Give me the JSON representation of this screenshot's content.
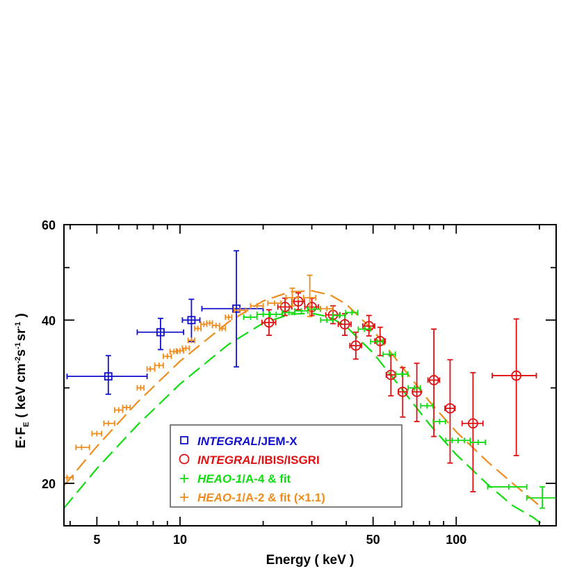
{
  "chart_data": {
    "type": "scatter",
    "title": "",
    "xlabel": "Energy ( keV )",
    "ylabel": "E·F",
    "ylabel_sub": "E",
    "ylabel_units": "( keV cm",
    "ylabel_units_sup1": "-2",
    "ylabel_units_mid": "s",
    "ylabel_units_sup2": "-1",
    "ylabel_units_mid2": "sr",
    "ylabel_units_sup3": "-1",
    "ylabel_units_end": ")",
    "x_scale": "log",
    "y_scale": "log",
    "xlim": [
      3.8,
      230
    ],
    "ylim": [
      16.7,
      60
    ],
    "x_ticks": [
      5,
      10,
      50,
      100
    ],
    "x_tick_labels": [
      "5",
      "10",
      "50",
      "100"
    ],
    "y_ticks": [
      20,
      40,
      60
    ],
    "y_tick_labels": [
      "20",
      "40",
      "60"
    ],
    "legend": {
      "placement": "bottom-center",
      "entries": [
        {
          "italic": "INTEGRAL",
          "rest": "/JEM-X"
        },
        {
          "italic": "INTEGRAL",
          "rest": "/IBIS/ISGRI"
        },
        {
          "italic": "HEAO-1",
          "rest": "/A-4 & fit"
        },
        {
          "italic": "HEAO-1",
          "rest": "/A-2 & fit (×1.1)"
        }
      ]
    },
    "series": [
      {
        "name": "INTEGRAL/JEM-X",
        "marker": "square",
        "color": "#1010cc",
        "points": [
          {
            "x": 5.5,
            "y": 31.5,
            "xlo": 3.9,
            "xhi": 7.6,
            "ylo": 29.2,
            "yhi": 34.4
          },
          {
            "x": 8.5,
            "y": 38.0,
            "xlo": 7.0,
            "xhi": 10.3,
            "ylo": 35.3,
            "yhi": 40.3
          },
          {
            "x": 11.0,
            "y": 40.0,
            "xlo": 10.2,
            "xhi": 11.8,
            "ylo": 36.5,
            "yhi": 43.7
          },
          {
            "x": 16.0,
            "y": 42.0,
            "xlo": 12.0,
            "xhi": 20.0,
            "ylo": 32.8,
            "yhi": 53.7
          }
        ]
      },
      {
        "name": "INTEGRAL/IBIS/ISGRI",
        "marker": "circle",
        "color": "#e01010",
        "points": [
          {
            "x": 21.0,
            "y": 39.6,
            "xlo": 19.8,
            "xhi": 22.2,
            "ylo": 37.5,
            "yhi": 41.8
          },
          {
            "x": 24.0,
            "y": 42.3,
            "xlo": 22.6,
            "xhi": 25.4,
            "ylo": 40.8,
            "yhi": 43.9
          },
          {
            "x": 26.8,
            "y": 43.3,
            "xlo": 25.4,
            "xhi": 28.2,
            "ylo": 41.8,
            "yhi": 44.9
          },
          {
            "x": 30.0,
            "y": 42.3,
            "xlo": 28.3,
            "xhi": 31.7,
            "ylo": 40.8,
            "yhi": 43.9
          },
          {
            "x": 35.8,
            "y": 40.9,
            "xlo": 33.7,
            "xhi": 37.9,
            "ylo": 39.4,
            "yhi": 42.5
          },
          {
            "x": 39.5,
            "y": 39.3,
            "xlo": 37.4,
            "xhi": 41.6,
            "ylo": 37.5,
            "yhi": 41.1
          },
          {
            "x": 43.3,
            "y": 35.9,
            "xlo": 41.2,
            "xhi": 45.4,
            "ylo": 33.9,
            "yhi": 38.0
          },
          {
            "x": 48.3,
            "y": 39.0,
            "xlo": 45.9,
            "xhi": 50.7,
            "ylo": 37.4,
            "yhi": 40.8
          },
          {
            "x": 53.0,
            "y": 36.6,
            "xlo": 50.7,
            "xhi": 55.3,
            "ylo": 34.4,
            "yhi": 38.8
          },
          {
            "x": 58.0,
            "y": 31.7,
            "xlo": 55.8,
            "xhi": 60.2,
            "ylo": 29.0,
            "yhi": 34.5
          },
          {
            "x": 64.0,
            "y": 29.5,
            "xlo": 61.7,
            "xhi": 66.3,
            "ylo": 26.5,
            "yhi": 32.7
          },
          {
            "x": 72.0,
            "y": 29.5,
            "xlo": 69.5,
            "xhi": 74.5,
            "ylo": 26.0,
            "yhi": 33.3
          },
          {
            "x": 83.0,
            "y": 31.0,
            "xlo": 79.0,
            "xhi": 87.0,
            "ylo": 24.4,
            "yhi": 38.5
          },
          {
            "x": 95.0,
            "y": 27.5,
            "xlo": 91.0,
            "xhi": 99.0,
            "ylo": 21.8,
            "yhi": 33.8
          },
          {
            "x": 115.0,
            "y": 25.8,
            "xlo": 105.0,
            "xhi": 125.0,
            "ylo": 19.3,
            "yhi": 32.0
          },
          {
            "x": 165.0,
            "y": 31.6,
            "xlo": 135.0,
            "xhi": 195.0,
            "ylo": 22.5,
            "yhi": 40.2
          }
        ]
      },
      {
        "name": "HEAO-1/A-4 & fit",
        "marker": "cross",
        "color": "#10dd10",
        "points": [
          {
            "x": 18.0,
            "y": 40.5,
            "xlo": 17.0,
            "xhi": 19.0
          },
          {
            "x": 20.0,
            "y": 41.0,
            "xlo": 19.0,
            "xhi": 21.0
          },
          {
            "x": 22.3,
            "y": 41.0,
            "xlo": 21.2,
            "xhi": 23.4
          },
          {
            "x": 24.8,
            "y": 41.3,
            "xlo": 23.5,
            "xhi": 26.0
          },
          {
            "x": 27.5,
            "y": 41.6,
            "xlo": 26.0,
            "xhi": 29.0
          },
          {
            "x": 30.6,
            "y": 41.9,
            "xlo": 29.0,
            "xhi": 32.2
          },
          {
            "x": 34.0,
            "y": 40.0,
            "xlo": 32.3,
            "xhi": 35.7
          },
          {
            "x": 37.7,
            "y": 40.8,
            "xlo": 35.8,
            "xhi": 39.6
          },
          {
            "x": 41.9,
            "y": 41.3,
            "xlo": 39.8,
            "xhi": 44.0
          },
          {
            "x": 46.5,
            "y": 38.5,
            "xlo": 44.2,
            "xhi": 48.8
          },
          {
            "x": 51.6,
            "y": 36.5,
            "xlo": 49.0,
            "xhi": 54.2
          },
          {
            "x": 57.3,
            "y": 34.6,
            "xlo": 54.4,
            "xhi": 60.2
          },
          {
            "x": 63.6,
            "y": 31.8,
            "xlo": 60.5,
            "xhi": 66.8
          },
          {
            "x": 70.6,
            "y": 30.0,
            "xlo": 67.0,
            "xhi": 74.2
          },
          {
            "x": 78.4,
            "y": 27.8,
            "xlo": 74.4,
            "xhi": 82.4
          },
          {
            "x": 87.0,
            "y": 26.0,
            "xlo": 82.6,
            "xhi": 91.4
          },
          {
            "x": 96.6,
            "y": 24.0,
            "xlo": 91.7,
            "xhi": 101.5
          },
          {
            "x": 107.0,
            "y": 24.0,
            "xlo": 101.6,
            "xhi": 112.4
          },
          {
            "x": 120.0,
            "y": 23.8,
            "xlo": 112.5,
            "xhi": 127.5
          },
          {
            "x": 155.0,
            "y": 19.7,
            "xlo": 130.0,
            "xhi": 180.0
          },
          {
            "x": 205.0,
            "y": 18.8,
            "xlo": 180.0,
            "xhi": 230.0,
            "ylo": 18.0,
            "yhi": 19.7
          }
        ]
      },
      {
        "name": "HEAO-1/A-2 & fit (×1.1)",
        "marker": "cross",
        "color": "#f08c1c",
        "points": [
          {
            "x": 3.9,
            "y": 20.5,
            "xlo": 3.8,
            "xhi": 4.1
          },
          {
            "x": 4.4,
            "y": 23.3,
            "xlo": 4.2,
            "xhi": 4.7
          },
          {
            "x": 5.0,
            "y": 24.7,
            "xlo": 4.8,
            "xhi": 5.2
          },
          {
            "x": 5.5,
            "y": 25.8,
            "xlo": 5.3,
            "xhi": 5.8
          },
          {
            "x": 6.0,
            "y": 27.3,
            "xlo": 5.8,
            "xhi": 6.2
          },
          {
            "x": 6.4,
            "y": 27.6,
            "xlo": 6.2,
            "xhi": 6.6
          },
          {
            "x": 7.2,
            "y": 30.0,
            "xlo": 7.0,
            "xhi": 7.4
          },
          {
            "x": 7.8,
            "y": 32.5,
            "xlo": 7.6,
            "xhi": 8.1
          },
          {
            "x": 8.4,
            "y": 33.0,
            "xlo": 8.1,
            "xhi": 8.7
          },
          {
            "x": 9.0,
            "y": 34.3,
            "xlo": 8.7,
            "xhi": 9.3
          },
          {
            "x": 9.5,
            "y": 35.0,
            "xlo": 9.2,
            "xhi": 9.8
          },
          {
            "x": 10.0,
            "y": 35.1,
            "xlo": 9.7,
            "xhi": 10.3
          },
          {
            "x": 10.5,
            "y": 35.5,
            "xlo": 10.2,
            "xhi": 10.8
          },
          {
            "x": 11.0,
            "y": 36.7,
            "xlo": 10.7,
            "xhi": 11.3
          },
          {
            "x": 11.6,
            "y": 38.6,
            "xlo": 11.3,
            "xhi": 11.9
          },
          {
            "x": 12.2,
            "y": 39.3,
            "xlo": 11.9,
            "xhi": 12.5
          },
          {
            "x": 12.8,
            "y": 39.5,
            "xlo": 12.5,
            "xhi": 13.1
          },
          {
            "x": 13.5,
            "y": 39.1,
            "xlo": 13.1,
            "xhi": 13.9
          },
          {
            "x": 14.2,
            "y": 38.6,
            "xlo": 13.9,
            "xhi": 14.6
          },
          {
            "x": 15.0,
            "y": 40.5,
            "xlo": 14.6,
            "xhi": 15.4
          },
          {
            "x": 16.5,
            "y": 41.7,
            "xlo": 15.7,
            "xhi": 17.3
          },
          {
            "x": 19.0,
            "y": 42.5,
            "xlo": 18.0,
            "xhi": 20.0
          },
          {
            "x": 22.0,
            "y": 43.0,
            "xlo": 20.8,
            "xhi": 23.2
          },
          {
            "x": 25.5,
            "y": 44.0,
            "xlo": 24.2,
            "xhi": 26.8,
            "ylo": 42.5,
            "yhi": 45.8
          },
          {
            "x": 29.5,
            "y": 44.0,
            "xlo": 28.0,
            "xhi": 31.0,
            "ylo": 40.6,
            "yhi": 48.4
          },
          {
            "x": 34.0,
            "y": 42.0,
            "xlo": 32.3,
            "xhi": 35.7
          }
        ]
      }
    ],
    "fits": [
      {
        "name": "HEAO-1/A-4 fit",
        "color": "#10dd10",
        "points": [
          [
            3.8,
            18.0
          ],
          [
            5,
            21.3
          ],
          [
            7,
            25.6
          ],
          [
            10,
            30.5
          ],
          [
            15,
            36.1
          ],
          [
            20,
            39.5
          ],
          [
            25,
            41.0
          ],
          [
            30,
            41.2
          ],
          [
            35,
            40.5
          ],
          [
            40,
            38.9
          ],
          [
            50,
            34.8
          ],
          [
            60,
            31.0
          ],
          [
            80,
            25.7
          ],
          [
            100,
            22.6
          ],
          [
            130,
            19.9
          ],
          [
            160,
            18.2
          ],
          [
            190,
            17.3
          ],
          [
            208,
            16.7
          ]
        ]
      },
      {
        "name": "HEAO-1/A-2 fit (×1.1)",
        "color": "#f08c1c",
        "points": [
          [
            3.8,
            19.8
          ],
          [
            5,
            23.4
          ],
          [
            7,
            28.2
          ],
          [
            10,
            33.6
          ],
          [
            15,
            39.7
          ],
          [
            20,
            43.4
          ],
          [
            25,
            45.1
          ],
          [
            30,
            45.3
          ],
          [
            35,
            44.5
          ],
          [
            40,
            42.8
          ],
          [
            50,
            38.3
          ],
          [
            60,
            34.1
          ],
          [
            80,
            28.3
          ],
          [
            100,
            24.9
          ],
          [
            130,
            21.9
          ],
          [
            160,
            20.0
          ],
          [
            190,
            18.6
          ],
          [
            205,
            18.0
          ]
        ]
      }
    ]
  }
}
